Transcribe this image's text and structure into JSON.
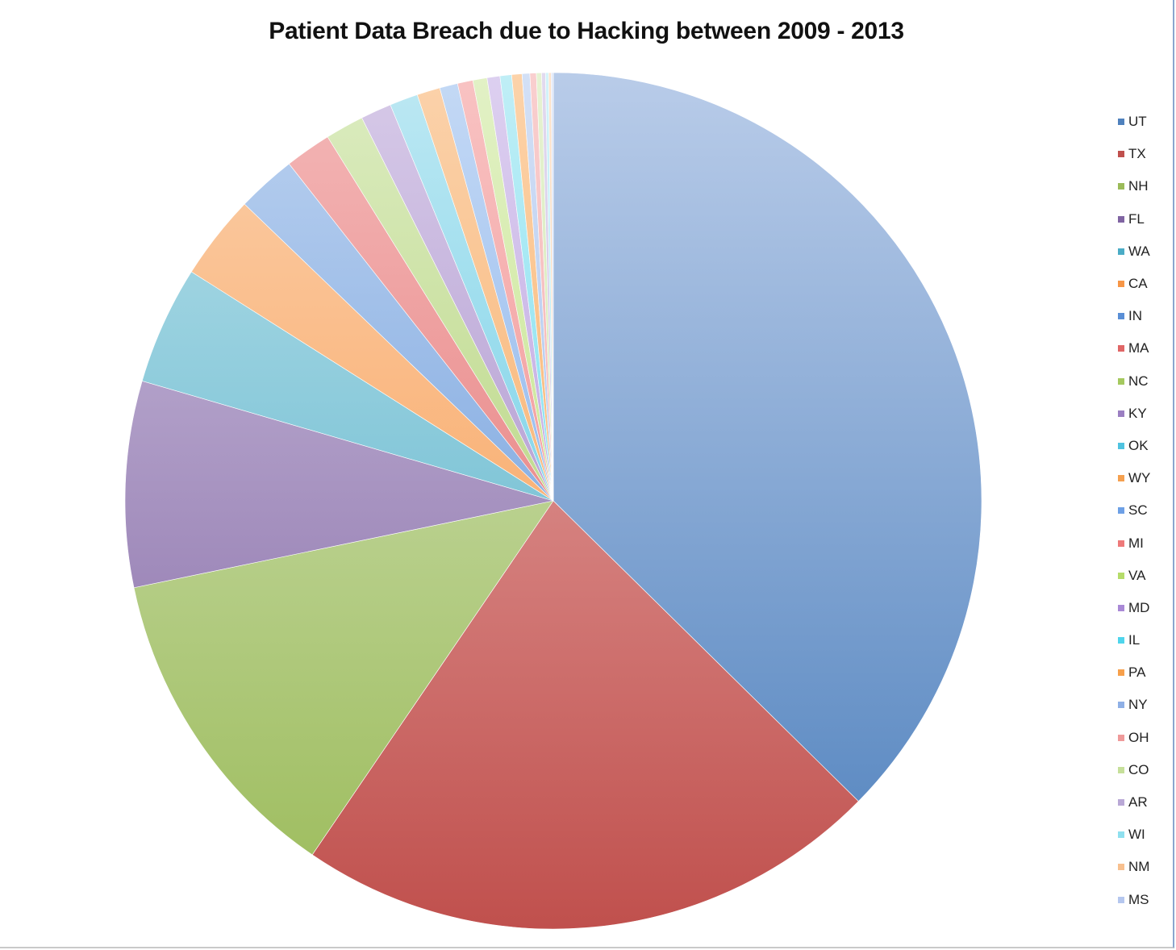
{
  "chart_data": {
    "type": "pie",
    "title": "Patient Data Breach due to Hacking between 2009 - 2013",
    "legend_position": "right",
    "start_angle_deg": 0,
    "direction": "clockwise",
    "slices": [
      {
        "label": "UT",
        "value": 38.5,
        "color": "#4f81bd",
        "light": "#b9cce9"
      },
      {
        "label": "TX",
        "value": 22.8,
        "color": "#c0504d",
        "light": "#ebb4b3"
      },
      {
        "label": "NH",
        "value": 12.6,
        "color": "#9bbb59",
        "light": "#d8e6c4"
      },
      {
        "label": "FL",
        "value": 8.0,
        "color": "#8064a2",
        "light": "#cdc1de"
      },
      {
        "label": "WA",
        "value": 4.6,
        "color": "#4bacc6",
        "light": "#b7dfe9"
      },
      {
        "label": "CA",
        "value": 3.3,
        "color": "#f79646",
        "light": "#fbcfaa"
      },
      {
        "label": "IN",
        "value": 2.3,
        "color": "#5a8fd6",
        "light": "#bcd2f0"
      },
      {
        "label": "MA",
        "value": 1.8,
        "color": "#e06666",
        "light": "#f4b8b8"
      },
      {
        "label": "NC",
        "value": 1.5,
        "color": "#a5c95f",
        "light": "#dcecc1"
      },
      {
        "label": "KY",
        "value": 1.2,
        "color": "#9b7fc2",
        "light": "#d7cae8"
      },
      {
        "label": "OK",
        "value": 1.1,
        "color": "#4fc3e0",
        "light": "#bde8f3"
      },
      {
        "label": "WY",
        "value": 0.9,
        "color": "#f5a04f",
        "light": "#fbd2ab"
      },
      {
        "label": "SC",
        "value": 0.7,
        "color": "#6da0e6",
        "light": "#c4d9f5"
      },
      {
        "label": "MI",
        "value": 0.6,
        "color": "#ee7a7a",
        "light": "#f8c3c3"
      },
      {
        "label": "VA",
        "value": 0.55,
        "color": "#b5dc6a",
        "light": "#e2f1c6"
      },
      {
        "label": "MD",
        "value": 0.5,
        "color": "#a989d6",
        "light": "#ddd0f0"
      },
      {
        "label": "IL",
        "value": 0.45,
        "color": "#4fd5ec",
        "light": "#c0eef6"
      },
      {
        "label": "PA",
        "value": 0.4,
        "color": "#f7a04b",
        "light": "#fcd3aa"
      },
      {
        "label": "NY",
        "value": 0.3,
        "color": "#8fb0e6",
        "light": "#d3e0f6"
      },
      {
        "label": "OH",
        "value": 0.25,
        "color": "#ef9a9a",
        "light": "#f9cfcf"
      },
      {
        "label": "CO",
        "value": 0.2,
        "color": "#c6e09a",
        "light": "#e6f2d2"
      },
      {
        "label": "AR",
        "value": 0.15,
        "color": "#b9a8d6",
        "light": "#e2daef"
      },
      {
        "label": "WI",
        "value": 0.12,
        "color": "#8fe0ef",
        "light": "#d3f3f9"
      },
      {
        "label": "NM",
        "value": 0.1,
        "color": "#f8c08f",
        "light": "#fce3cc"
      },
      {
        "label": "MS",
        "value": 0.08,
        "color": "#b5c7ef",
        "light": "#e0e8f9"
      }
    ]
  }
}
